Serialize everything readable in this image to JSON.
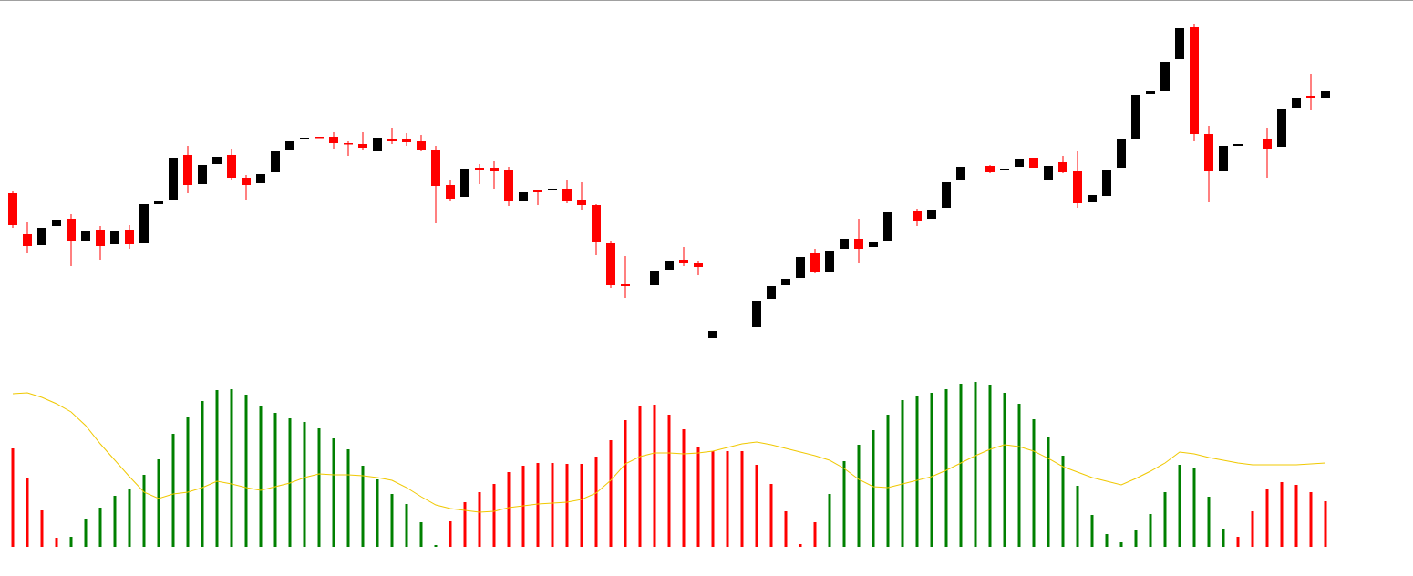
{
  "chart_data": [
    {
      "type": "candlestick",
      "up_color": "#000000",
      "down_color": "#ff0000",
      "ylim": [
        0,
        400
      ],
      "open": [
        188,
        143,
        131,
        152,
        160,
        136,
        148,
        132,
        148,
        133,
        176,
        181,
        230,
        198,
        220,
        230,
        205,
        199,
        211,
        235,
        247,
        250,
        250,
        243,
        242,
        234,
        248,
        248,
        245,
        235,
        197,
        184,
        216,
        216,
        213,
        180,
        191,
        191,
        193,
        181,
        175,
        133,
        88,
        null,
        87,
        104,
        115,
        111,
        29,
        null,
        null,
        41,
        72,
        87,
        95,
        122,
        102,
        127,
        138,
        129,
        136,
        null,
        169,
        160,
        172,
        203,
        null,
        218,
        213,
        217,
        227,
        203,
        222,
        212,
        178,
        185,
        216,
        248,
        297,
        300,
        335,
        370,
        253,
        212,
        240,
        null,
        247,
        239,
        281,
        295,
        292
      ],
      "high": [
        190,
        156,
        150,
        159,
        165,
        146,
        152,
        147,
        153,
        176,
        180,
        227,
        240,
        219,
        228,
        237,
        208,
        209,
        234,
        245,
        249,
        250,
        255,
        245,
        255,
        249,
        260,
        254,
        252,
        240,
        202,
        215,
        220,
        223,
        217,
        189,
        192,
        193,
        202,
        200,
        176,
        136,
        119,
        null,
        103,
        114,
        129,
        114,
        37,
        null,
        null,
        70,
        86,
        94,
        118,
        127,
        125,
        138,
        160,
        135,
        167,
        null,
        171,
        170,
        200,
        217,
        null,
        219,
        215,
        226,
        227,
        218,
        229,
        234,
        186,
        214,
        247,
        296,
        300,
        332,
        369,
        374,
        262,
        240,
        242,
        null,
        260,
        280,
        293,
        319,
        300
      ],
      "low": [
        150,
        122,
        131,
        152,
        108,
        136,
        115,
        132,
        127,
        133,
        176,
        181,
        188,
        198,
        220,
        202,
        181,
        199,
        211,
        235,
        247,
        249,
        237,
        229,
        235,
        234,
        242,
        240,
        234,
        155,
        180,
        184,
        198,
        193,
        174,
        180,
        175,
        191,
        177,
        170,
        120,
        84,
        73,
        null,
        87,
        104,
        108,
        98,
        29,
        null,
        null,
        41,
        72,
        87,
        95,
        100,
        102,
        127,
        111,
        129,
        136,
        null,
        152,
        160,
        172,
        203,
        null,
        210,
        213,
        217,
        216,
        203,
        210,
        172,
        178,
        185,
        216,
        248,
        297,
        300,
        335,
        245,
        178,
        212,
        240,
        null,
        205,
        239,
        281,
        279,
        292
      ],
      "close": [
        153,
        130,
        150,
        159,
        136,
        146,
        130,
        147,
        132,
        176,
        180,
        227,
        197,
        219,
        228,
        205,
        197,
        209,
        234,
        245,
        249,
        249,
        243,
        242,
        238,
        249,
        245,
        244,
        235,
        196,
        182,
        215,
        214,
        212,
        179,
        189,
        189,
        193,
        180,
        175,
        134,
        87,
        86,
        null,
        103,
        114,
        111,
        107,
        37,
        null,
        null,
        70,
        86,
        94,
        118,
        102,
        125,
        138,
        127,
        135,
        167,
        null,
        158,
        170,
        200,
        217,
        null,
        211,
        215,
        226,
        216,
        218,
        211,
        177,
        186,
        214,
        247,
        296,
        300,
        332,
        369,
        253,
        212,
        240,
        242,
        null,
        237,
        280,
        293,
        292,
        300
      ]
    },
    {
      "type": "bar",
      "ylim": [
        0,
        200
      ],
      "series": [
        {
          "color": "#008000",
          "values": [
            null,
            null,
            null,
            null,
            11,
            30,
            43,
            56,
            63,
            79,
            96,
            124,
            143,
            160,
            172,
            173,
            167,
            154,
            147,
            141,
            137,
            130,
            119,
            107,
            89,
            74,
            58,
            47,
            27,
            2,
            null,
            null,
            null,
            null,
            null,
            null,
            null,
            null,
            null,
            null,
            null,
            null,
            null,
            null,
            null,
            null,
            null,
            null,
            null,
            null,
            null,
            null,
            null,
            null,
            null,
            null,
            58,
            94,
            112,
            128,
            145,
            161,
            166,
            169,
            173,
            179,
            181,
            178,
            169,
            157,
            140,
            121,
            100,
            67,
            35,
            14,
            5,
            18,
            36,
            60,
            90,
            87,
            55,
            20,
            null,
            null,
            null,
            null,
            null,
            null,
            null
          ]
        },
        {
          "color": "#ff0000",
          "values": [
            108,
            75,
            40,
            10,
            null,
            null,
            null,
            null,
            null,
            null,
            null,
            null,
            null,
            null,
            null,
            null,
            null,
            null,
            null,
            null,
            null,
            null,
            null,
            null,
            null,
            null,
            null,
            null,
            null,
            null,
            28,
            49,
            60,
            69,
            82,
            89,
            92,
            92,
            91,
            91,
            99,
            117,
            139,
            154,
            156,
            145,
            129,
            109,
            105,
            105,
            105,
            90,
            69,
            39,
            3,
            27,
            null,
            null,
            null,
            null,
            null,
            null,
            null,
            null,
            null,
            null,
            null,
            null,
            null,
            null,
            null,
            null,
            null,
            null,
            null,
            null,
            null,
            null,
            null,
            null,
            null,
            null,
            null,
            null,
            11,
            39,
            63,
            71,
            68,
            60,
            50
          ]
        },
        {
          "type": "line",
          "color": "#f0c800",
          "values": [
            168,
            169,
            164,
            157,
            148,
            133,
            113,
            95,
            77,
            60,
            53,
            58,
            60,
            65,
            72,
            69,
            65,
            62,
            66,
            70,
            76,
            80,
            79,
            79,
            78,
            76,
            73,
            65,
            55,
            46,
            42,
            40,
            38,
            39,
            43,
            45,
            47,
            48,
            49,
            52,
            59,
            73,
            91,
            99,
            103,
            103,
            102,
            103,
            105,
            109,
            113,
            115,
            112,
            108,
            104,
            100,
            95,
            86,
            74,
            66,
            65,
            69,
            73,
            77,
            84,
            92,
            100,
            107,
            112,
            110,
            105,
            97,
            88,
            82,
            76,
            72,
            68,
            75,
            83,
            92,
            104,
            102,
            98,
            95,
            92,
            90,
            90,
            90,
            90,
            91,
            92
          ]
        }
      ]
    }
  ]
}
